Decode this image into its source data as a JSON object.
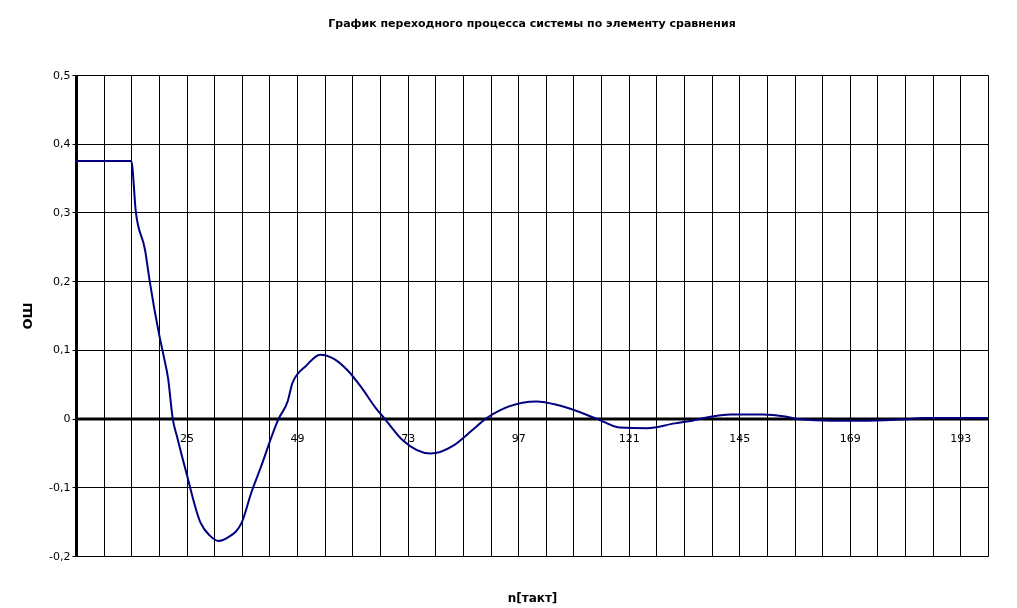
{
  "chart_data": {
    "type": "line",
    "title": "График переходного процесса системы по элементу сравнения",
    "xlabel": "n[такт]",
    "ylabel": "ОШ",
    "x": [
      1,
      13,
      14,
      16,
      17,
      19,
      20,
      21,
      22,
      23,
      25,
      28,
      30,
      32,
      34,
      37,
      39,
      41,
      45,
      47,
      48,
      51,
      54,
      57,
      60,
      63,
      66,
      68,
      72,
      78,
      83,
      87,
      90,
      93,
      101,
      106,
      114,
      119,
      125,
      131,
      134,
      139,
      143,
      150,
      155,
      158,
      165,
      173,
      181,
      185,
      199
    ],
    "series": [
      {
        "color": "#000080",
        "values": [
          0.375,
          0.375,
          0.3,
          0.245,
          0.2,
          0.124,
          0.092,
          0.058,
          0,
          -0.028,
          -0.08,
          -0.151,
          -0.17,
          -0.178,
          -0.173,
          -0.151,
          -0.109,
          -0.073,
          0,
          0.026,
          0.052,
          0.077,
          0.093,
          0.087,
          0.07,
          0.045,
          0.016,
          0,
          -0.032,
          -0.051,
          -0.039,
          -0.017,
          0,
          0.012,
          0.025,
          0.019,
          0,
          -0.013,
          -0.014,
          -0.007,
          -0.004,
          0.003,
          0.006,
          0.006,
          0.003,
          -0.001,
          -0.003,
          -0.003,
          -0.001,
          0.001,
          0.001
        ]
      }
    ],
    "xlim": [
      1,
      199
    ],
    "xticks": [
      {
        "value": 1,
        "label": null
      },
      {
        "value": 7,
        "label": null
      },
      {
        "value": 13,
        "label": null
      },
      {
        "value": 19,
        "label": null
      },
      25,
      {
        "value": 31,
        "label": null
      },
      {
        "value": 37,
        "label": null
      },
      {
        "value": 43,
        "label": null
      },
      49,
      {
        "value": 55,
        "label": null
      },
      {
        "value": 61,
        "label": null
      },
      {
        "value": 67,
        "label": null
      },
      73,
      {
        "value": 79,
        "label": null
      },
      {
        "value": 85,
        "label": null
      },
      {
        "value": 91,
        "label": null
      },
      97,
      {
        "value": 103,
        "label": null
      },
      {
        "value": 109,
        "label": null
      },
      {
        "value": 115,
        "label": null
      },
      121,
      {
        "value": 127,
        "label": null
      },
      {
        "value": 133,
        "label": null
      },
      {
        "value": 139,
        "label": null
      },
      145,
      {
        "value": 151,
        "label": null
      },
      {
        "value": 157,
        "label": null
      },
      {
        "value": 163,
        "label": null
      },
      169,
      {
        "value": 175,
        "label": null
      },
      {
        "value": 181,
        "label": null
      },
      {
        "value": 187,
        "label": null
      },
      193,
      {
        "value": 199,
        "label": null
      }
    ],
    "ylim": [
      -0.2,
      0.5
    ],
    "yticks": [
      {
        "value": -0.2,
        "label": "-0,2"
      },
      {
        "value": -0.1,
        "label": "-0,1"
      },
      0,
      {
        "value": 0.1,
        "label": "0,1"
      },
      {
        "value": 0.2,
        "label": "0,2"
      },
      {
        "value": 0.3,
        "label": "0,3"
      },
      {
        "value": 0.4,
        "label": "0,4"
      },
      {
        "value": 0.5,
        "label": "0,5"
      }
    ],
    "grid": true,
    "marker": "none",
    "line_style": "solid"
  }
}
